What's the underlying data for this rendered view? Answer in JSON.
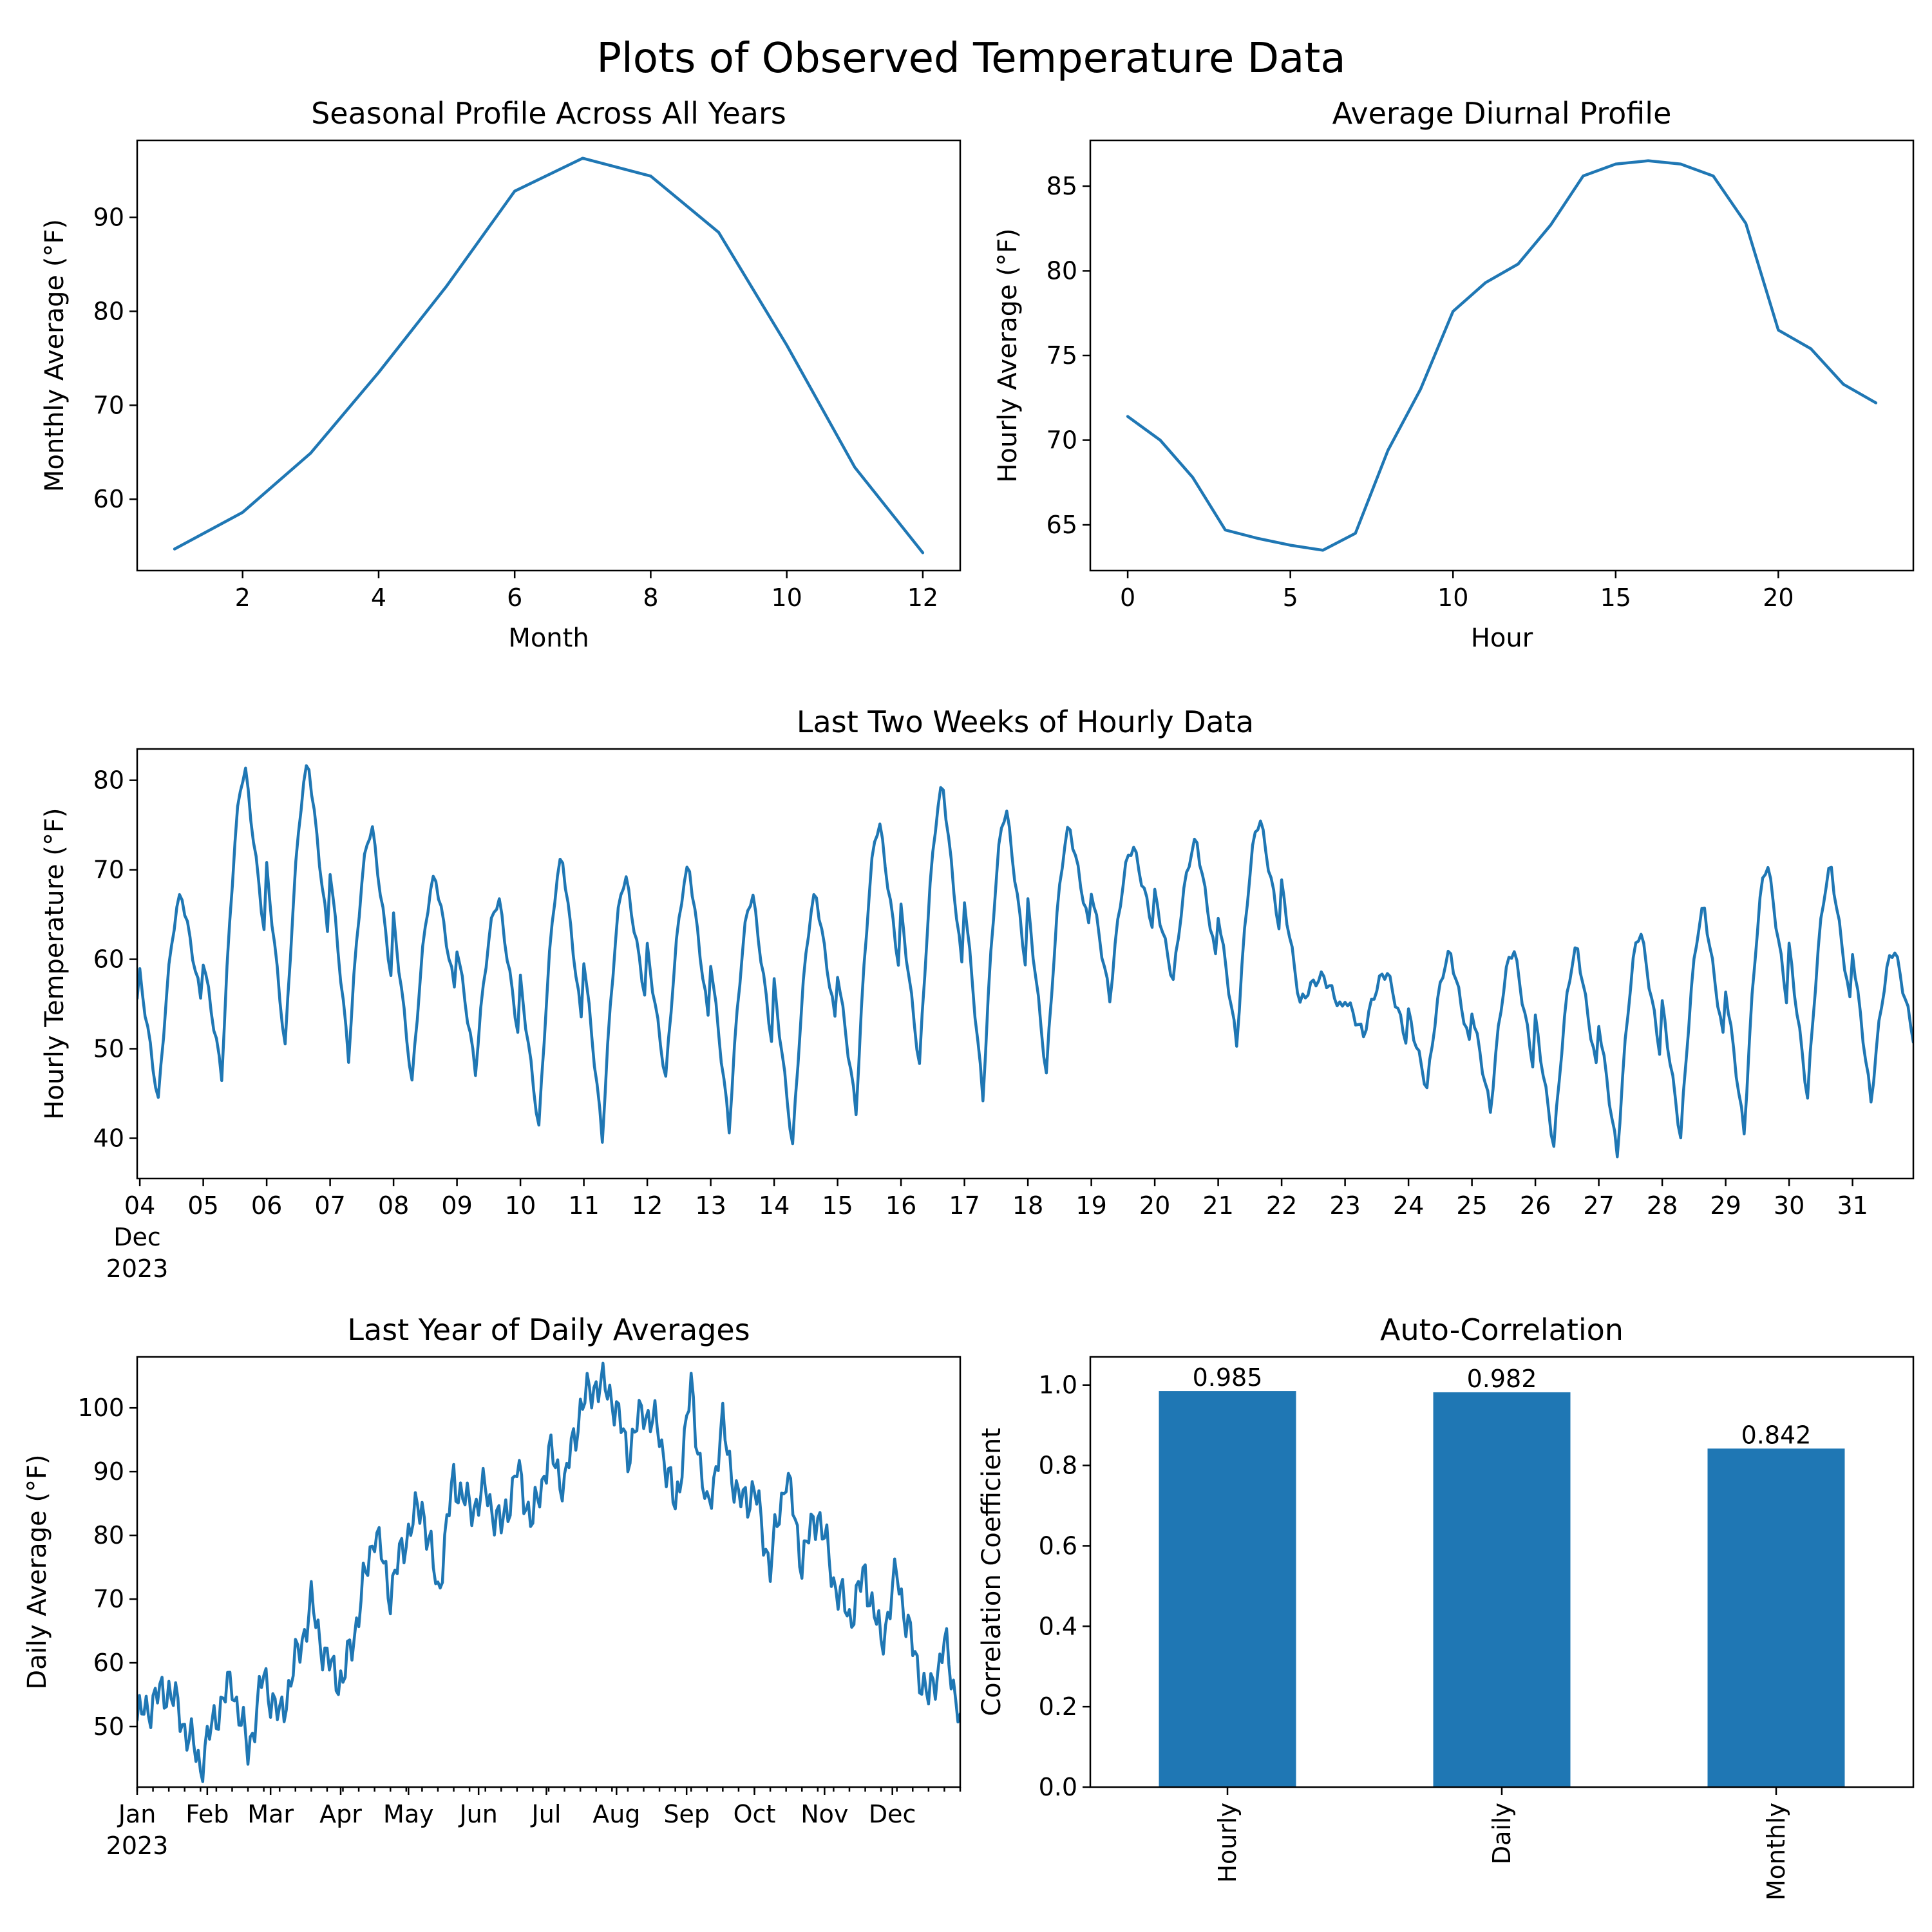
{
  "figure": {
    "title": "Plots of Observed Temperature Data",
    "line_color": "#1f77b4",
    "bar_color": "#1f77b4"
  },
  "chart_data": [
    {
      "id": "seasonal",
      "type": "line",
      "title": "Seasonal Profile Across All Years",
      "xlabel": "Month",
      "ylabel": "Monthly Average (°F)",
      "xlim": [
        0.45,
        12.55
      ],
      "ylim": [
        52.4,
        98.2
      ],
      "xticks": [
        2,
        4,
        6,
        8,
        10,
        12
      ],
      "xtick_labels": [
        "2",
        "4",
        "6",
        "8",
        "10",
        "12"
      ],
      "yticks": [
        60,
        70,
        80,
        90
      ],
      "ytick_labels": [
        "60",
        "70",
        "80",
        "90"
      ],
      "x": [
        1,
        2,
        3,
        4,
        5,
        6,
        7,
        8,
        9,
        10,
        11,
        12
      ],
      "y": [
        54.7,
        58.6,
        64.9,
        73.5,
        82.7,
        92.8,
        96.3,
        94.4,
        88.4,
        76.4,
        63.4,
        54.3
      ]
    },
    {
      "id": "diurnal",
      "type": "line",
      "title": "Average Diurnal Profile",
      "xlabel": "Hour",
      "ylabel": "Hourly Average (°F)",
      "xlim": [
        -1.15,
        24.15
      ],
      "ylim": [
        62.3,
        87.7
      ],
      "xticks": [
        0,
        5,
        10,
        15,
        20
      ],
      "xtick_labels": [
        "0",
        "5",
        "10",
        "15",
        "20"
      ],
      "yticks": [
        65,
        70,
        75,
        80,
        85
      ],
      "ytick_labels": [
        "65",
        "70",
        "75",
        "80",
        "85"
      ],
      "x": [
        0,
        1,
        2,
        3,
        4,
        5,
        6,
        7,
        8,
        9,
        10,
        11,
        12,
        13,
        14,
        15,
        16,
        17,
        18,
        19,
        20,
        21,
        22,
        23
      ],
      "y": [
        71.4,
        70.0,
        67.8,
        64.7,
        64.2,
        63.8,
        63.5,
        64.5,
        69.4,
        73.0,
        77.6,
        79.3,
        80.4,
        82.7,
        85.6,
        86.3,
        86.5,
        86.3,
        85.6,
        82.8,
        76.5,
        75.4,
        73.3,
        72.2
      ]
    },
    {
      "id": "hourly",
      "type": "line",
      "title": "Last Two Weeks of Hourly Data",
      "xlabel": "",
      "ylabel": "Hourly Temperature (°F)",
      "x_axis": "date",
      "x_start": "2023-12-03T23:00",
      "x_end": "2023-12-31T23:00",
      "ylim": [
        35.5,
        83.5
      ],
      "xticks": [
        "2023-12-04",
        "2023-12-05",
        "2023-12-06",
        "2023-12-07",
        "2023-12-08",
        "2023-12-09",
        "2023-12-10",
        "2023-12-11",
        "2023-12-12",
        "2023-12-13",
        "2023-12-14",
        "2023-12-15",
        "2023-12-16",
        "2023-12-17",
        "2023-12-18",
        "2023-12-19",
        "2023-12-20",
        "2023-12-21",
        "2023-12-22",
        "2023-12-23",
        "2023-12-24",
        "2023-12-25",
        "2023-12-26",
        "2023-12-27",
        "2023-12-28",
        "2023-12-29",
        "2023-12-30",
        "2023-12-31"
      ],
      "xtick_labels": [
        "04",
        "05",
        "06",
        "07",
        "08",
        "09",
        "10",
        "11",
        "12",
        "13",
        "14",
        "15",
        "16",
        "17",
        "18",
        "19",
        "20",
        "21",
        "22",
        "23",
        "24",
        "25",
        "26",
        "27",
        "28",
        "29",
        "30",
        "31"
      ],
      "x_offset_label": [
        "Dec",
        "2023"
      ],
      "yticks": [
        40,
        50,
        60,
        70,
        80
      ],
      "ytick_labels": [
        "40",
        "50",
        "60",
        "70",
        "80"
      ],
      "series": [
        {
          "date": "2023-12-04",
          "min": 44.0,
          "max": 67.0
        },
        {
          "date": "2023-12-05",
          "min": 47.0,
          "max": 81.0
        },
        {
          "date": "2023-12-06",
          "min": 50.0,
          "max": 81.5
        },
        {
          "date": "2023-12-07",
          "min": 49.0,
          "max": 74.5
        },
        {
          "date": "2023-12-08",
          "min": 46.0,
          "max": 69.0
        },
        {
          "date": "2023-12-09",
          "min": 47.5,
          "max": 66.5
        },
        {
          "date": "2023-12-10",
          "min": 41.0,
          "max": 71.0
        },
        {
          "date": "2023-12-11",
          "min": 40.0,
          "max": 69.0
        },
        {
          "date": "2023-12-12",
          "min": 46.5,
          "max": 70.0
        },
        {
          "date": "2023-12-13",
          "min": 41.0,
          "max": 67.0
        },
        {
          "date": "2023-12-14",
          "min": 39.0,
          "max": 67.0
        },
        {
          "date": "2023-12-15",
          "min": 43.0,
          "max": 75.0
        },
        {
          "date": "2023-12-16",
          "min": 48.0,
          "max": 79.0
        },
        {
          "date": "2023-12-17",
          "min": 44.5,
          "max": 76.5
        },
        {
          "date": "2023-12-18",
          "min": 47.0,
          "max": 74.5
        },
        {
          "date": "2023-12-19",
          "min": 55.5,
          "max": 72.5
        },
        {
          "date": "2023-12-20",
          "min": 57.5,
          "max": 73.0
        },
        {
          "date": "2023-12-21",
          "min": 50.5,
          "max": 75.5
        },
        {
          "date": "2023-12-22",
          "min": 55.0,
          "max": 58.0
        },
        {
          "date": "2023-12-23",
          "min": 51.5,
          "max": 58.5
        },
        {
          "date": "2023-12-24",
          "min": 45.5,
          "max": 60.5
        },
        {
          "date": "2023-12-25",
          "min": 43.0,
          "max": 61.0
        },
        {
          "date": "2023-12-26",
          "min": 39.0,
          "max": 61.0
        },
        {
          "date": "2023-12-27",
          "min": 38.0,
          "max": 63.0
        },
        {
          "date": "2023-12-28",
          "min": 40.0,
          "max": 65.5
        },
        {
          "date": "2023-12-29",
          "min": 40.5,
          "max": 70.5
        },
        {
          "date": "2023-12-30",
          "min": 44.5,
          "max": 70.0
        },
        {
          "date": "2023-12-31",
          "min": 44.0,
          "max": 61.0
        }
      ]
    },
    {
      "id": "daily",
      "type": "line",
      "title": "Last Year of Daily Averages",
      "xlabel": "",
      "ylabel": "Daily Average (°F)",
      "x_axis": "date",
      "x_start": "2023-01-01",
      "x_end": "2023-12-31",
      "ylim": [
        40.5,
        108.0
      ],
      "xticks": [
        "2023-01-01",
        "2023-02-01",
        "2023-03-01",
        "2023-04-01",
        "2023-05-01",
        "2023-06-01",
        "2023-07-01",
        "2023-08-01",
        "2023-09-01",
        "2023-10-01",
        "2023-11-01",
        "2023-12-01"
      ],
      "xtick_labels": [
        "Jan",
        "Feb",
        "Mar",
        "Apr",
        "May",
        "Jun",
        "Jul",
        "Aug",
        "Sep",
        "Oct",
        "Nov",
        "Dec"
      ],
      "x_offset_label": [
        "2023"
      ],
      "yticks": [
        50,
        60,
        70,
        80,
        90,
        100
      ],
      "ytick_labels": [
        "50",
        "60",
        "70",
        "80",
        "90",
        "100"
      ],
      "series": [
        {
          "date": "2023-01-01",
          "value": 51
        },
        {
          "date": "2023-01-08",
          "value": 54
        },
        {
          "date": "2023-01-15",
          "value": 56
        },
        {
          "date": "2023-01-22",
          "value": 50
        },
        {
          "date": "2023-01-29",
          "value": 44
        },
        {
          "date": "2023-02-05",
          "value": 52
        },
        {
          "date": "2023-02-12",
          "value": 57
        },
        {
          "date": "2023-02-19",
          "value": 46
        },
        {
          "date": "2023-02-26",
          "value": 58
        },
        {
          "date": "2023-03-05",
          "value": 51
        },
        {
          "date": "2023-03-12",
          "value": 60
        },
        {
          "date": "2023-03-19",
          "value": 69
        },
        {
          "date": "2023-03-26",
          "value": 60
        },
        {
          "date": "2023-04-02",
          "value": 57
        },
        {
          "date": "2023-04-09",
          "value": 68
        },
        {
          "date": "2023-04-16",
          "value": 81
        },
        {
          "date": "2023-04-23",
          "value": 71
        },
        {
          "date": "2023-04-30",
          "value": 80
        },
        {
          "date": "2023-05-07",
          "value": 85
        },
        {
          "date": "2023-05-14",
          "value": 71
        },
        {
          "date": "2023-05-21",
          "value": 89
        },
        {
          "date": "2023-05-28",
          "value": 84
        },
        {
          "date": "2023-06-04",
          "value": 87
        },
        {
          "date": "2023-06-11",
          "value": 81
        },
        {
          "date": "2023-06-18",
          "value": 90
        },
        {
          "date": "2023-06-25",
          "value": 82
        },
        {
          "date": "2023-07-02",
          "value": 93
        },
        {
          "date": "2023-07-09",
          "value": 88
        },
        {
          "date": "2023-07-16",
          "value": 100
        },
        {
          "date": "2023-07-23",
          "value": 104
        },
        {
          "date": "2023-07-30",
          "value": 102
        },
        {
          "date": "2023-08-06",
          "value": 93
        },
        {
          "date": "2023-08-13",
          "value": 100
        },
        {
          "date": "2023-08-20",
          "value": 96
        },
        {
          "date": "2023-08-27",
          "value": 84
        },
        {
          "date": "2023-09-03",
          "value": 103
        },
        {
          "date": "2023-09-10",
          "value": 83
        },
        {
          "date": "2023-09-17",
          "value": 97
        },
        {
          "date": "2023-09-24",
          "value": 85
        },
        {
          "date": "2023-10-01",
          "value": 87
        },
        {
          "date": "2023-10-08",
          "value": 75
        },
        {
          "date": "2023-10-15",
          "value": 90
        },
        {
          "date": "2023-10-22",
          "value": 76
        },
        {
          "date": "2023-10-29",
          "value": 84
        },
        {
          "date": "2023-11-05",
          "value": 73
        },
        {
          "date": "2023-11-12",
          "value": 67
        },
        {
          "date": "2023-11-19",
          "value": 74
        },
        {
          "date": "2023-11-26",
          "value": 63
        },
        {
          "date": "2023-12-03",
          "value": 74
        },
        {
          "date": "2023-12-10",
          "value": 62
        },
        {
          "date": "2023-12-17",
          "value": 54
        },
        {
          "date": "2023-12-24",
          "value": 63
        },
        {
          "date": "2023-12-31",
          "value": 52
        }
      ]
    },
    {
      "id": "autocorr",
      "type": "bar",
      "title": "Auto-Correlation",
      "xlabel": "",
      "ylabel": "Correlation Coefficient",
      "categories": [
        "Hourly",
        "Daily",
        "Monthly"
      ],
      "values": [
        0.985,
        0.982,
        0.842
      ],
      "value_labels": [
        "0.985",
        "0.982",
        "0.842"
      ],
      "ylim": [
        0,
        1.07
      ],
      "yticks": [
        0.0,
        0.2,
        0.4,
        0.6,
        0.8,
        1.0
      ],
      "ytick_labels": [
        "0.0",
        "0.2",
        "0.4",
        "0.6",
        "0.8",
        "1.0"
      ]
    }
  ]
}
